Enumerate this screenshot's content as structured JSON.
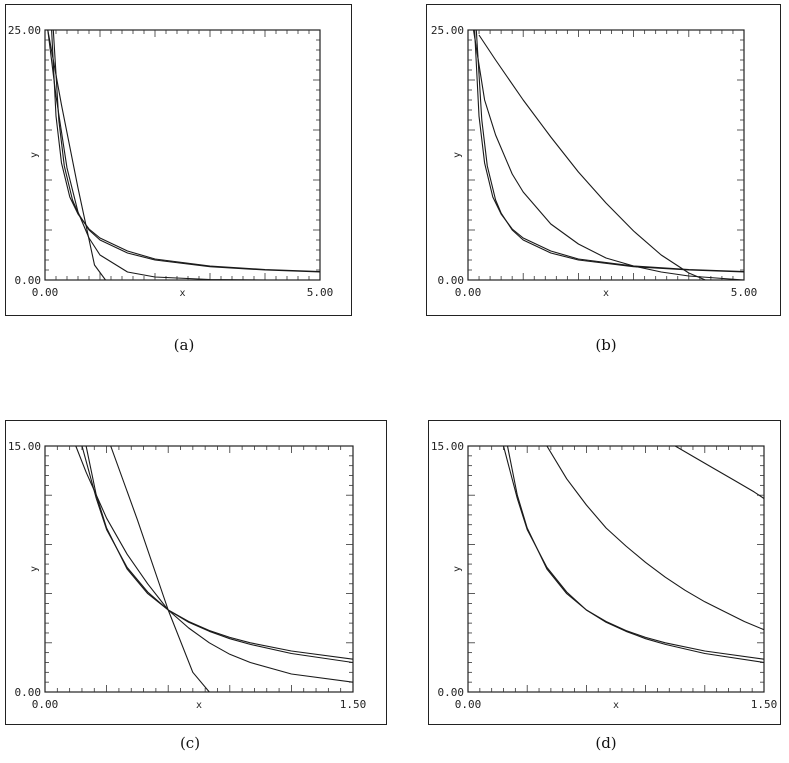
{
  "figure": {
    "panels": [
      {
        "id": "a",
        "caption": "(a)"
      },
      {
        "id": "b",
        "caption": "(b)"
      },
      {
        "id": "c",
        "caption": "(c)"
      },
      {
        "id": "d",
        "caption": "(d)"
      }
    ]
  },
  "chart_data": [
    {
      "panel": "a",
      "type": "line",
      "xlabel": "x",
      "ylabel": "y",
      "xlim": [
        0,
        5
      ],
      "ylim": [
        0,
        25
      ],
      "x_ticks": [
        "0.00",
        "5.00"
      ],
      "y_ticks": [
        "0.00",
        "25.00"
      ],
      "grid": false,
      "series": [
        {
          "x": [
            0.15,
            0.25,
            0.35,
            0.5,
            0.6,
            0.8,
            1.0,
            1.5,
            2.0,
            3.0,
            4.0,
            5.0
          ],
          "y": [
            25,
            16.0,
            11.4,
            8.0,
            6.7,
            5.0,
            4.0,
            2.7,
            2.0,
            1.33,
            1.0,
            0.8
          ]
        },
        {
          "x": [
            0.12,
            0.2,
            0.3,
            0.45,
            0.6,
            0.8,
            1.0,
            1.5,
            2.0,
            3.0,
            4.0,
            5.0
          ],
          "y": [
            25,
            16.4,
            11.7,
            8.3,
            6.6,
            5.1,
            4.2,
            2.9,
            2.1,
            1.4,
            1.05,
            0.85
          ]
        },
        {
          "x": [
            0.05,
            0.2,
            0.4,
            0.6,
            0.8,
            1.0,
            1.5,
            2.0,
            3.0,
            4.0,
            5.0
          ],
          "y": [
            25,
            18.4,
            11.2,
            6.8,
            4.2,
            2.5,
            0.8,
            0.3,
            0.05,
            0.0,
            0.0
          ]
        },
        {
          "x": [
            0.05,
            0.3,
            0.6,
            0.9,
            1.1
          ],
          "y": [
            25,
            17.5,
            9.2,
            1.5,
            0.0
          ]
        }
      ]
    },
    {
      "panel": "b",
      "type": "line",
      "xlabel": "x",
      "ylabel": "y",
      "xlim": [
        0,
        5
      ],
      "ylim": [
        0,
        25
      ],
      "x_ticks": [
        "0.00",
        "5.00"
      ],
      "y_ticks": [
        "0.00",
        "25.00"
      ],
      "grid": false,
      "series": [
        {
          "x": [
            0.15,
            0.25,
            0.35,
            0.5,
            0.6,
            0.8,
            1.0,
            1.5,
            2.0,
            3.0,
            4.0,
            5.0
          ],
          "y": [
            25,
            16.0,
            11.4,
            8.0,
            6.7,
            5.0,
            4.0,
            2.7,
            2.0,
            1.33,
            1.0,
            0.8
          ]
        },
        {
          "x": [
            0.12,
            0.2,
            0.3,
            0.45,
            0.6,
            0.8,
            1.0,
            1.5,
            2.0,
            3.0,
            4.0,
            5.0
          ],
          "y": [
            25,
            16.4,
            11.7,
            8.3,
            6.6,
            5.1,
            4.2,
            2.9,
            2.1,
            1.4,
            1.05,
            0.85
          ]
        },
        {
          "x": [
            0.1,
            0.3,
            0.5,
            0.8,
            1.0,
            1.5,
            2.0,
            2.5,
            3.0,
            3.5,
            4.0,
            5.0
          ],
          "y": [
            25,
            18.0,
            14.5,
            10.6,
            8.8,
            5.6,
            3.6,
            2.2,
            1.4,
            0.8,
            0.4,
            0.0
          ]
        },
        {
          "x": [
            0.2,
            0.5,
            1.0,
            1.5,
            2.0,
            2.5,
            3.0,
            3.5,
            4.0,
            4.3,
            5.0
          ],
          "y": [
            24.5,
            22.0,
            18.0,
            14.3,
            10.8,
            7.7,
            4.9,
            2.5,
            0.7,
            0.0,
            0.0
          ]
        }
      ]
    },
    {
      "panel": "c",
      "type": "line",
      "xlabel": "x",
      "ylabel": "y",
      "xlim": [
        0,
        1.5
      ],
      "ylim": [
        0,
        15
      ],
      "x_ticks": [
        "0.00",
        "1.50"
      ],
      "y_ticks": [
        "0.00",
        "15.00"
      ],
      "grid": false,
      "series": [
        {
          "x": [
            0.2,
            0.25,
            0.3,
            0.4,
            0.5,
            0.6,
            0.7,
            0.8,
            0.9,
            1.0,
            1.2,
            1.5
          ],
          "y": [
            15.0,
            12.0,
            10.0,
            7.5,
            6.0,
            5.0,
            4.3,
            3.75,
            3.33,
            3.0,
            2.5,
            2.0
          ]
        },
        {
          "x": [
            0.18,
            0.25,
            0.3,
            0.4,
            0.5,
            0.6,
            0.7,
            0.8,
            0.9,
            1.0,
            1.2,
            1.5
          ],
          "y": [
            15.0,
            11.8,
            9.9,
            7.6,
            6.1,
            5.0,
            4.25,
            3.7,
            3.25,
            2.9,
            2.35,
            1.8
          ]
        },
        {
          "x": [
            0.15,
            0.2,
            0.3,
            0.4,
            0.5,
            0.6,
            0.7,
            0.8,
            0.9,
            1.0,
            1.2,
            1.5
          ],
          "y": [
            15.0,
            13.4,
            10.6,
            8.4,
            6.6,
            5.0,
            3.9,
            3.0,
            2.3,
            1.8,
            1.1,
            0.6
          ]
        },
        {
          "x": [
            0.32,
            0.45,
            0.6,
            0.72,
            0.8
          ],
          "y": [
            15.0,
            10.5,
            5.0,
            1.2,
            0.0
          ]
        }
      ]
    },
    {
      "panel": "d",
      "type": "line",
      "xlabel": "x",
      "ylabel": "y",
      "xlim": [
        0,
        1.5
      ],
      "ylim": [
        0,
        15
      ],
      "x_ticks": [
        "0.00",
        "1.50"
      ],
      "y_ticks": [
        "0.00",
        "15.00"
      ],
      "grid": false,
      "series": [
        {
          "x": [
            0.2,
            0.25,
            0.3,
            0.4,
            0.5,
            0.6,
            0.7,
            0.8,
            0.9,
            1.0,
            1.2,
            1.5
          ],
          "y": [
            15.0,
            12.0,
            10.0,
            7.5,
            6.0,
            5.0,
            4.3,
            3.75,
            3.33,
            3.0,
            2.5,
            2.0
          ]
        },
        {
          "x": [
            0.18,
            0.25,
            0.3,
            0.4,
            0.5,
            0.6,
            0.7,
            0.8,
            0.9,
            1.0,
            1.2,
            1.5
          ],
          "y": [
            15.0,
            11.8,
            9.9,
            7.6,
            6.1,
            5.0,
            4.25,
            3.7,
            3.25,
            2.9,
            2.35,
            1.8
          ]
        },
        {
          "x": [
            0.4,
            0.5,
            0.6,
            0.7,
            0.8,
            0.9,
            1.0,
            1.1,
            1.2,
            1.3,
            1.4,
            1.5
          ],
          "y": [
            15.0,
            13.0,
            11.4,
            10.0,
            8.9,
            7.9,
            7.0,
            6.2,
            5.5,
            4.9,
            4.3,
            3.8
          ]
        },
        {
          "x": [
            1.05,
            1.15,
            1.25,
            1.35,
            1.45,
            1.5
          ],
          "y": [
            15.0,
            14.3,
            13.6,
            12.9,
            12.2,
            11.8
          ]
        }
      ]
    }
  ]
}
